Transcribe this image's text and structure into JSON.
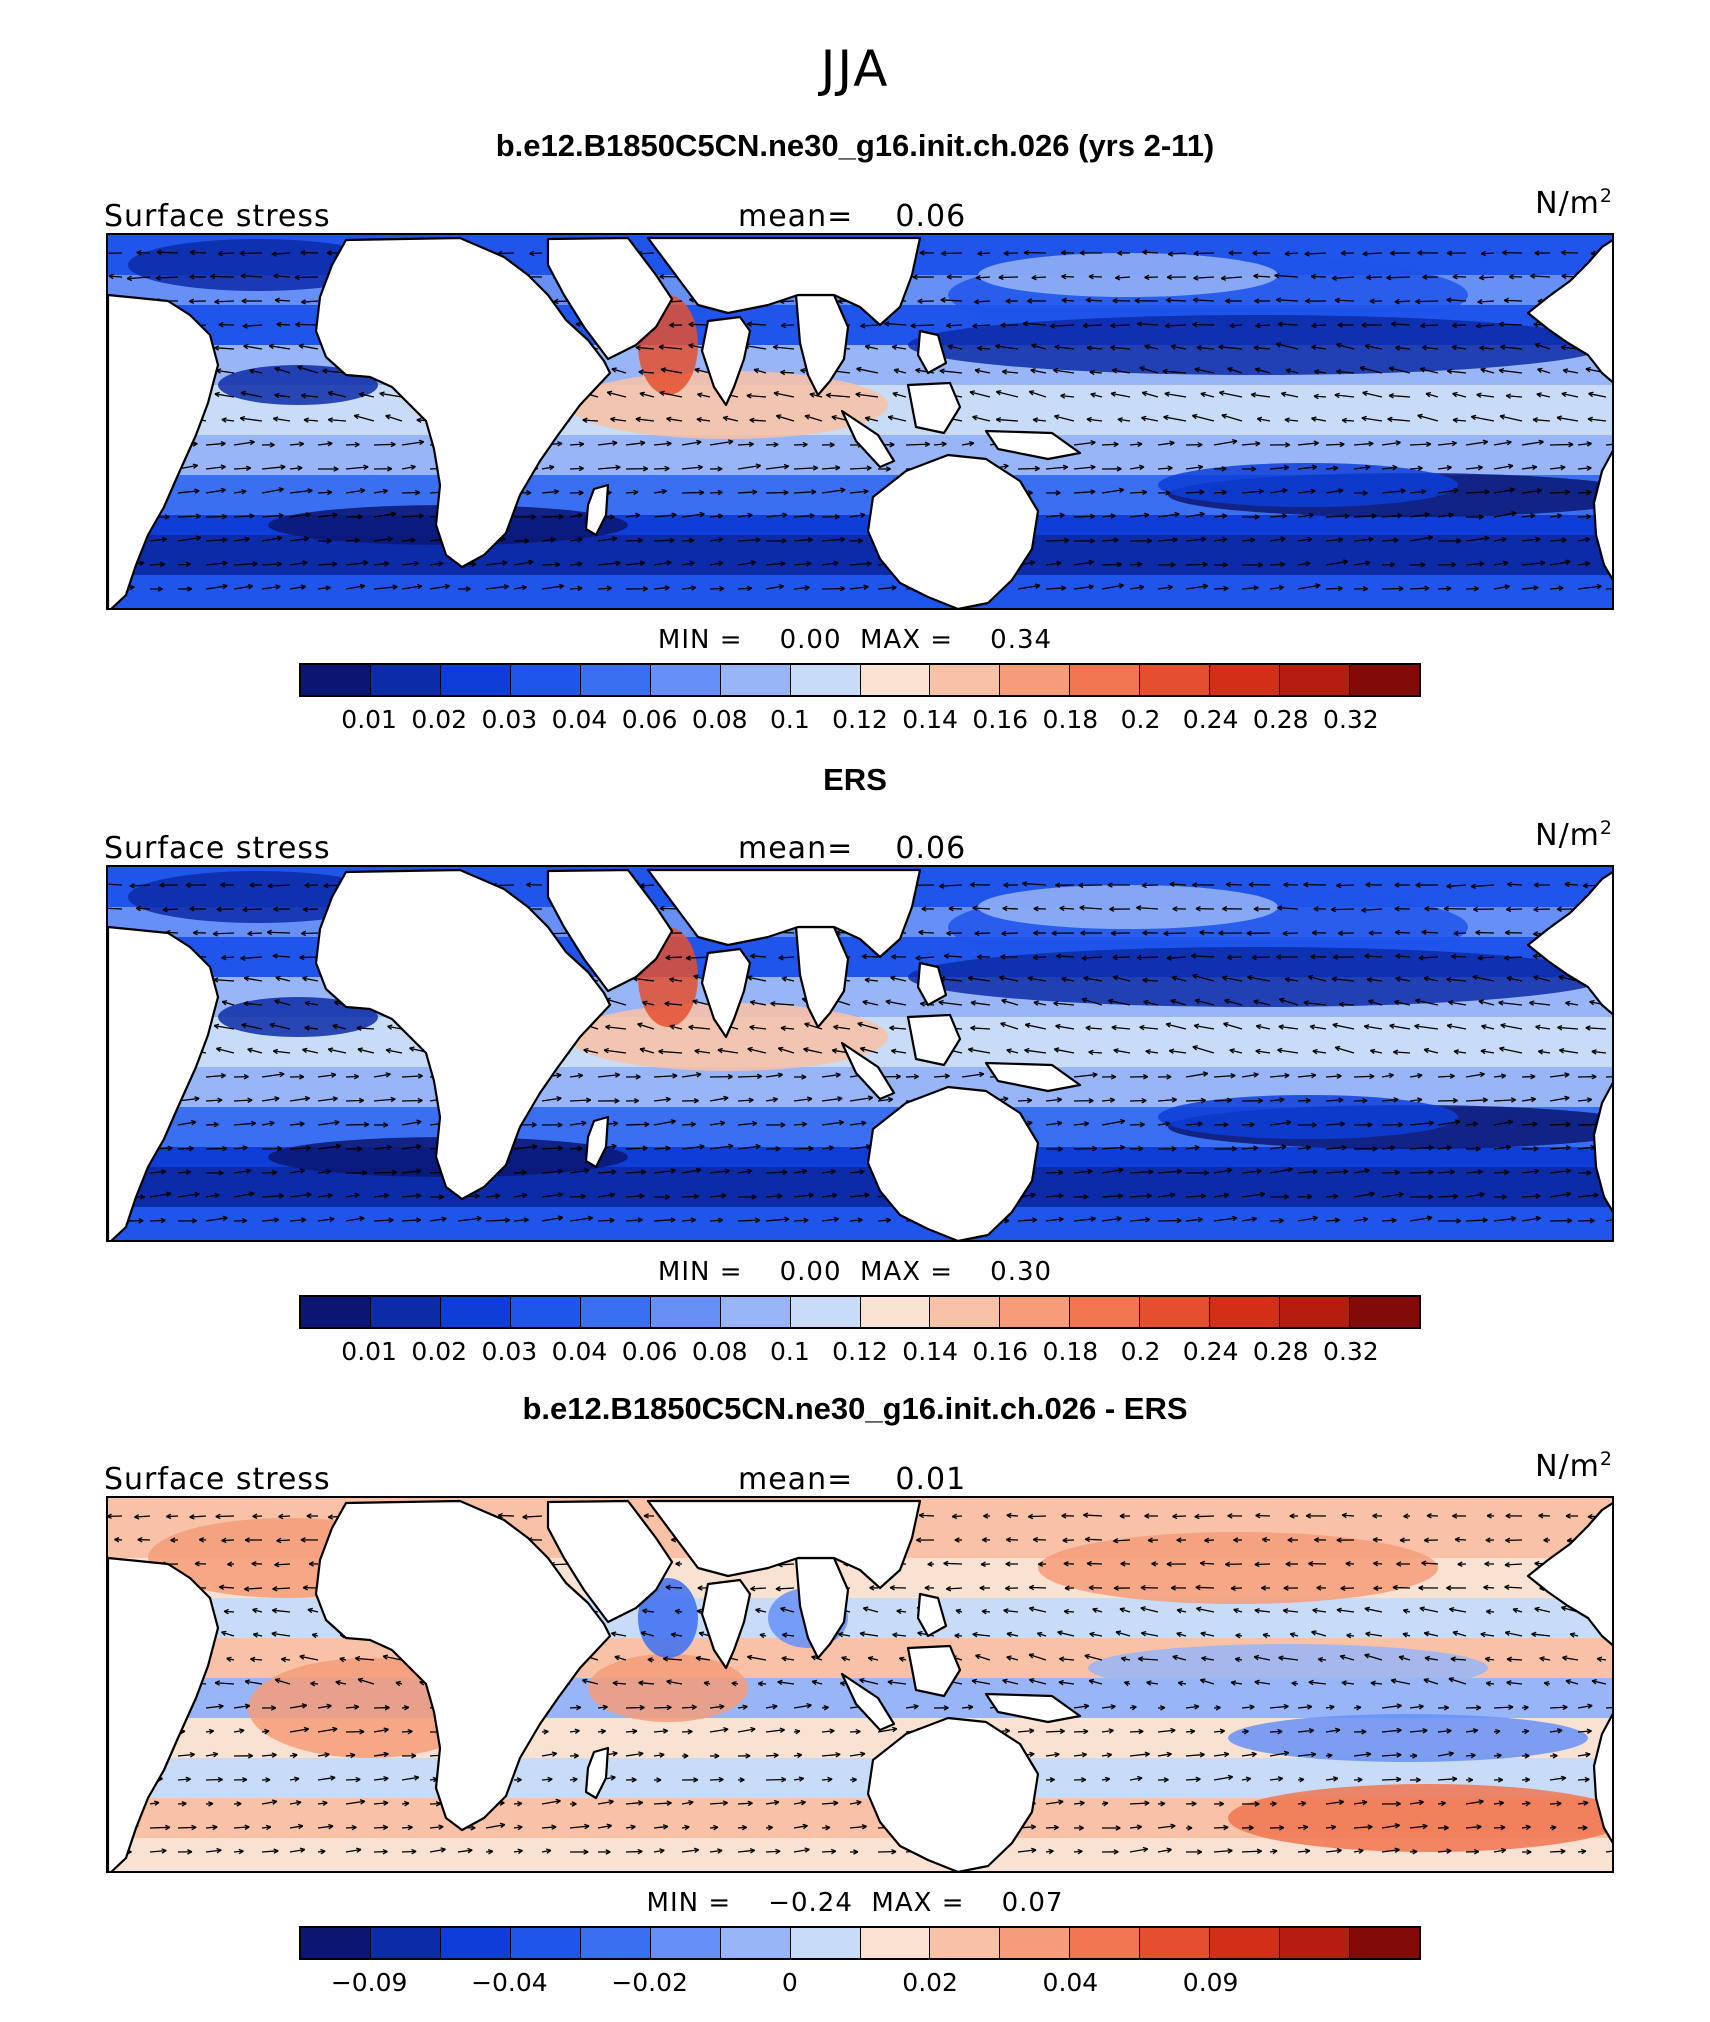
{
  "season": "JJA",
  "unit": "N/m",
  "unit_sup": "2",
  "field_label": "Surface stress",
  "colors": {
    "field": [
      "#0a1672",
      "#0c2ba8",
      "#0e3ed7",
      "#1f55ea",
      "#3b6ff2",
      "#6690f6",
      "#98b5f7",
      "#c8dcf7",
      "#fae2d2",
      "#f9c1a5",
      "#f59c79",
      "#f07550",
      "#e4502f",
      "#d32f18",
      "#b51d0f",
      "#820a08"
    ],
    "land": "#ffffff",
    "coast": "#000000"
  },
  "panels": [
    {
      "title": "b.e12.B1850C5CN.ne30_g16.init.ch.026 (yrs 2-11)",
      "mean_label": "mean=",
      "mean_value": "0.06",
      "min_label": "MIN =",
      "min_value": "0.00",
      "max_label": "MAX =",
      "max_value": "0.34",
      "colorbar_labels": [
        "0.01",
        "0.02",
        "0.03",
        "0.04",
        "0.06",
        "0.08",
        "0.1",
        "0.12",
        "0.14",
        "0.16",
        "0.18",
        "0.2",
        "0.24",
        "0.28",
        "0.32"
      ]
    },
    {
      "title": "ERS",
      "mean_label": "mean=",
      "mean_value": "0.06",
      "min_label": "MIN =",
      "min_value": "0.00",
      "max_label": "MAX =",
      "max_value": "0.30",
      "colorbar_labels": [
        "0.01",
        "0.02",
        "0.03",
        "0.04",
        "0.06",
        "0.08",
        "0.1",
        "0.12",
        "0.14",
        "0.16",
        "0.18",
        "0.2",
        "0.24",
        "0.28",
        "0.32"
      ]
    },
    {
      "title": "b.e12.B1850C5CN.ne30_g16.init.ch.026 - ERS",
      "mean_label": "mean=",
      "mean_value": "0.01",
      "min_label": "MIN =",
      "min_value": "−0.24",
      "max_label": "MAX =",
      "max_value": "0.07",
      "colorbar_labels": [
        "−0.09",
        "",
        "−0.04",
        "",
        "−0.02",
        "",
        "0",
        "",
        "0.02",
        "",
        "0.04",
        "",
        "0.09",
        "",
        ""
      ]
    }
  ]
}
